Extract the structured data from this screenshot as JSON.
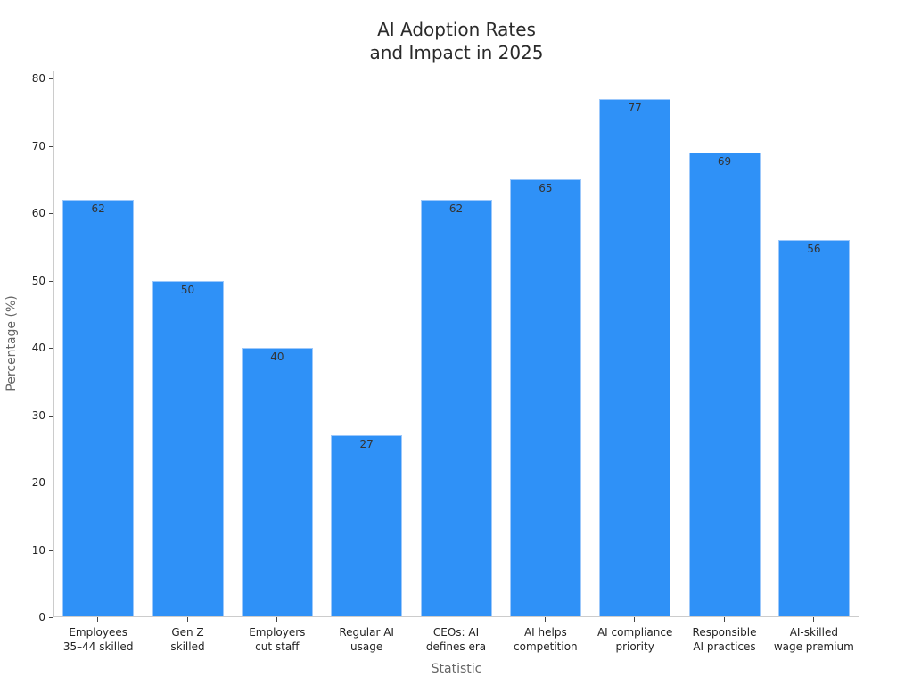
{
  "chart_data": {
    "type": "bar",
    "title": "AI Adoption Rates\nand Impact in 2025",
    "title_lines": [
      "AI Adoption Rates",
      "and Impact in 2025"
    ],
    "xlabel": "Statistic",
    "ylabel": "Percentage (%)",
    "ylim": [
      0,
      80
    ],
    "yticks": [
      0,
      10,
      20,
      30,
      40,
      50,
      60,
      70,
      80
    ],
    "grid": false,
    "legend": null,
    "bar_color": "#2f91f7",
    "categories": [
      "Employees 35–44 skilled",
      "Gen Z skilled",
      "Employers cut staff",
      "Regular AI usage",
      "CEOs: AI defines era",
      "AI helps competition",
      "AI compliance priority",
      "Responsible AI practices",
      "AI-skilled wage premium"
    ],
    "category_lines": [
      [
        "Employees",
        "35–44 skilled"
      ],
      [
        "Gen Z",
        "skilled"
      ],
      [
        "Employers",
        "cut staff"
      ],
      [
        "Regular AI",
        "usage"
      ],
      [
        "CEOs: AI",
        "defines era"
      ],
      [
        "AI helps",
        "competition"
      ],
      [
        "AI compliance",
        "priority"
      ],
      [
        "Responsible",
        "AI practices"
      ],
      [
        "AI-skilled",
        "wage premium"
      ]
    ],
    "values": [
      62,
      50,
      40,
      27,
      62,
      65,
      77,
      69,
      56
    ],
    "data_labels": [
      "62",
      "50",
      "40",
      "27",
      "62",
      "65",
      "77",
      "69",
      "56"
    ]
  }
}
